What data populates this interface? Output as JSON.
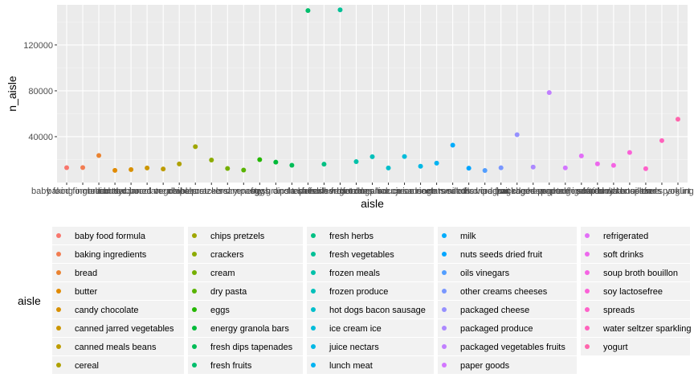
{
  "chart_data": {
    "type": "scatter",
    "title": "",
    "xlabel": "aisle",
    "ylabel": "n_aisle",
    "ylim": [
      0,
      155000
    ],
    "yticks": [
      40000,
      80000,
      120000
    ],
    "ytick_labels": [
      "40000",
      "80000",
      "120000"
    ],
    "grid": true,
    "legend_position": "bottom",
    "legend_title": "aisle",
    "categories": [
      "baby food formula",
      "baking ingredients",
      "bread",
      "butter",
      "candy chocolate",
      "canned jarred vegetables",
      "canned meals beans",
      "cereal",
      "chips pretzels",
      "crackers",
      "cream",
      "dry pasta",
      "eggs",
      "energy granola bars",
      "fresh dips tapenades",
      "fresh fruits",
      "fresh herbs",
      "fresh vegetables",
      "frozen meals",
      "frozen produce",
      "hot dogs bacon sausage",
      "ice cream ice",
      "juice nectars",
      "lunch meat",
      "milk",
      "nuts seeds dried fruit",
      "oils vinegars",
      "other creams cheeses",
      "packaged cheese",
      "packaged produce",
      "packaged vegetables fruits",
      "paper goods",
      "refrigerated",
      "soft drinks",
      "soup broth bouillon",
      "soy lactosefree",
      "spreads",
      "water seltzer sparkling water",
      "yogurt"
    ],
    "legend_labels": [
      "baby food formula",
      "baking ingredients",
      "bread",
      "butter",
      "candy chocolate",
      "canned jarred vegetables",
      "canned meals beans",
      "cereal",
      "chips pretzels",
      "crackers",
      "cream",
      "dry pasta",
      "eggs",
      "energy granola bars",
      "fresh dips tapenades",
      "fresh fruits",
      "fresh herbs",
      "fresh vegetables",
      "frozen meals",
      "frozen produce",
      "hot dogs bacon sausage",
      "ice cream ice",
      "juice nectars",
      "lunch meat",
      "milk",
      "nuts seeds dried fruit",
      "oils vinegars",
      "other creams cheeses",
      "packaged cheese",
      "packaged produce",
      "packaged vegetables fruits",
      "paper goods",
      "refrigerated",
      "soft drinks",
      "soup broth bouillon",
      "soy lactosefree",
      "spreads",
      "water seltzer sparkling",
      "yogurt"
    ],
    "values": [
      13000,
      13100,
      23600,
      10600,
      11300,
      12700,
      11800,
      16200,
      31300,
      19600,
      12300,
      10900,
      20000,
      17800,
      15100,
      150000,
      16000,
      150600,
      18200,
      22500,
      12700,
      22700,
      14200,
      16900,
      32600,
      12500,
      10500,
      12900,
      41700,
      13500,
      78500,
      12800,
      23200,
      16300,
      15000,
      26200,
      12100,
      36600,
      55200
    ],
    "colors": [
      "#F8766D",
      "#F27D52",
      "#EA8331",
      "#E18A00",
      "#D89000",
      "#CC9600",
      "#BE9C00",
      "#AFA100",
      "#9FA600",
      "#8CAB00",
      "#75AF00",
      "#58B300",
      "#24B700",
      "#00BA38",
      "#00BC56",
      "#00BE6C",
      "#00C083",
      "#00C096",
      "#00C1A9",
      "#00C0BA",
      "#00BECB",
      "#00BCDA",
      "#00B8E5",
      "#00B3F2",
      "#00ACFC",
      "#00A5FF",
      "#529EFF",
      "#7997FF",
      "#9590FF",
      "#AC88FF",
      "#C17FFF",
      "#D376FF",
      "#E26EF7",
      "#ED68ED",
      "#F564E3",
      "#FB61D7",
      "#FF61C9",
      "#FF62BC",
      "#FF65AC"
    ]
  }
}
